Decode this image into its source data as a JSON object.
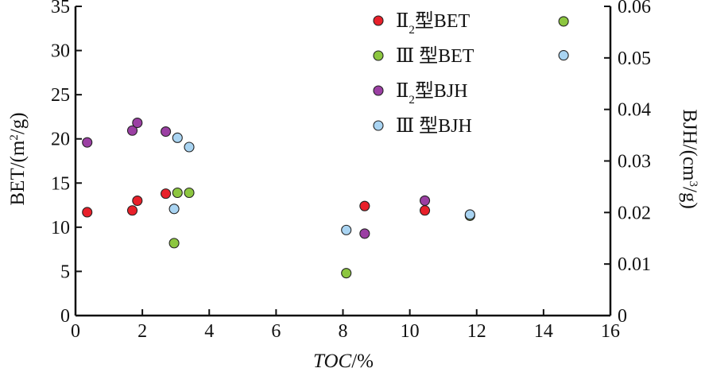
{
  "chart_data": {
    "type": "scatter",
    "x_axis": {
      "label_italic": "TOC",
      "label_suffix": "/%",
      "range": [
        0,
        16
      ],
      "ticks": [
        "0",
        "2",
        "4",
        "6",
        "8",
        "10",
        "12",
        "14",
        "16"
      ]
    },
    "y_left": {
      "label_main": "BET/(m",
      "label_sup": "2",
      "label_end": "/g)",
      "range": [
        0,
        35
      ],
      "ticks": [
        "0",
        "5",
        "10",
        "15",
        "20",
        "25",
        "30",
        "35"
      ]
    },
    "y_right": {
      "label_main": "BJH/(cm",
      "label_sup": "3",
      "label_end": "/g)",
      "range": [
        0,
        0.06
      ],
      "ticks": [
        "0",
        "0.01",
        "0.02",
        "0.03",
        "0.04",
        "0.05",
        "0.06"
      ]
    },
    "series": [
      {
        "name": "Ⅱ₂型BET",
        "axis": "left",
        "color": "#e8202a",
        "points": [
          [
            0.35,
            11.7
          ],
          [
            1.7,
            11.9
          ],
          [
            1.85,
            13.0
          ],
          [
            2.7,
            13.8
          ],
          [
            8.65,
            12.4
          ],
          [
            10.45,
            11.9
          ]
        ]
      },
      {
        "name": "Ⅲ 型BET",
        "axis": "left",
        "color": "#8cc63f",
        "points": [
          [
            2.95,
            8.2
          ],
          [
            3.05,
            13.9
          ],
          [
            3.4,
            13.9
          ],
          [
            8.1,
            4.8
          ],
          [
            11.8,
            11.3
          ],
          [
            14.6,
            33.3
          ]
        ]
      },
      {
        "name": "Ⅱ₂型BJH",
        "axis": "right",
        "color": "#9b3fa3",
        "points": [
          [
            0.35,
            0.0336
          ],
          [
            1.7,
            0.0359
          ],
          [
            1.85,
            0.0374
          ],
          [
            2.7,
            0.0357
          ],
          [
            8.65,
            0.0159
          ],
          [
            10.45,
            0.0223
          ]
        ]
      },
      {
        "name": "Ⅲ 型BJH",
        "axis": "right",
        "color": "#a9d4f2",
        "points": [
          [
            2.95,
            0.0207
          ],
          [
            3.05,
            0.0345
          ],
          [
            3.4,
            0.0327
          ],
          [
            8.1,
            0.0166
          ],
          [
            11.8,
            0.0196
          ],
          [
            14.6,
            0.0505
          ]
        ]
      }
    ],
    "legend": {
      "placement": "top-right",
      "entries": [
        {
          "label": "Ⅱ",
          "sub": "2",
          "rest": "型BET"
        },
        {
          "label": "Ⅲ 型BET",
          "sub": "",
          "rest": ""
        },
        {
          "label": "Ⅱ",
          "sub": "2",
          "rest": "型BJH"
        },
        {
          "label": "Ⅲ 型BJH",
          "sub": "",
          "rest": ""
        }
      ]
    },
    "grid": false
  }
}
